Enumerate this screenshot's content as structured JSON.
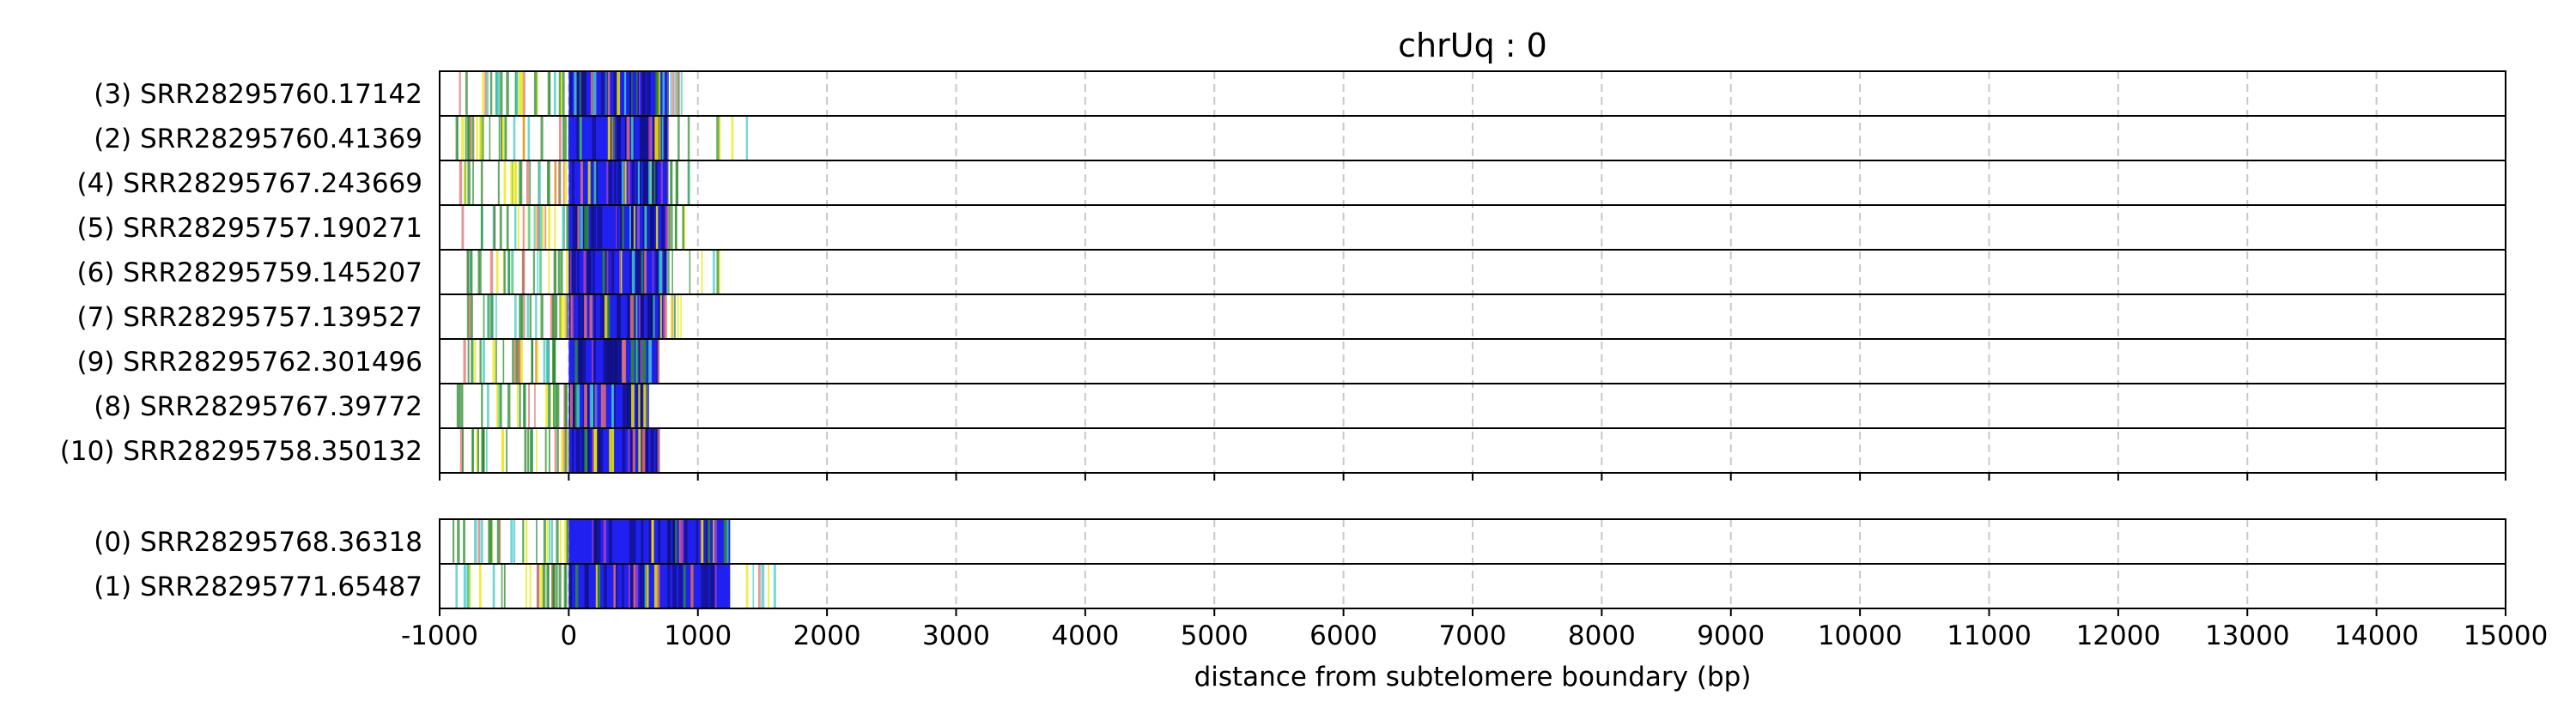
{
  "chart_data": {
    "type": "read-plot",
    "title": "chrUq : 0",
    "xlabel": "distance from subtelomere boundary (bp)",
    "ylabel": "",
    "xlim": [
      -1000,
      15000
    ],
    "xticks": [
      -1000,
      0,
      1000,
      2000,
      3000,
      4000,
      5000,
      6000,
      7000,
      8000,
      9000,
      10000,
      11000,
      12000,
      13000,
      14000,
      15000
    ],
    "xtick_labels": [
      "-1000",
      "0",
      "1000",
      "2000",
      "3000",
      "4000",
      "5000",
      "6000",
      "7000",
      "8000",
      "9000",
      "10000",
      "11000",
      "12000",
      "13000",
      "14000",
      "15000"
    ],
    "grid": "vertical dashed at x ticks",
    "colors": {
      "telomere": "#2020f0",
      "variant_green": "#2e8b2e",
      "variant_yellow": "#e8e800",
      "variant_pink": "#e07070",
      "variant_cyan": "#40c8c8",
      "variant_purple": "#a040c0"
    },
    "panels": [
      {
        "reads": [
          {
            "label": "(3) SRR28295760.17142",
            "start": -850,
            "tel_end": 760,
            "end": 880
          },
          {
            "label": "(2) SRR28295760.41369",
            "start": -900,
            "tel_end": 760,
            "end": 1400
          },
          {
            "label": "(4) SRR28295767.243669",
            "start": -850,
            "tel_end": 760,
            "end": 950
          },
          {
            "label": "(5) SRR28295757.190271",
            "start": -850,
            "tel_end": 760,
            "end": 900
          },
          {
            "label": "(6) SRR28295759.145207",
            "start": -800,
            "tel_end": 760,
            "end": 1220
          },
          {
            "label": "(7) SRR28295757.139527",
            "start": -800,
            "tel_end": 740,
            "end": 880
          },
          {
            "label": "(9) SRR28295762.301496",
            "start": -870,
            "tel_end": 700,
            "end": 700
          },
          {
            "label": "(8) SRR28295767.39772",
            "start": -870,
            "tel_end": 590,
            "end": 590
          },
          {
            "label": "(10) SRR28295758.350132",
            "start": -850,
            "tel_end": 700,
            "end": 700
          }
        ]
      },
      {
        "reads": [
          {
            "label": "(0) SRR28295768.36318",
            "start": -900,
            "tel_end": 1250,
            "end": 1250
          },
          {
            "label": "(1) SRR28295771.65487",
            "start": -880,
            "tel_end": 1250,
            "end": 1650
          }
        ]
      }
    ]
  }
}
